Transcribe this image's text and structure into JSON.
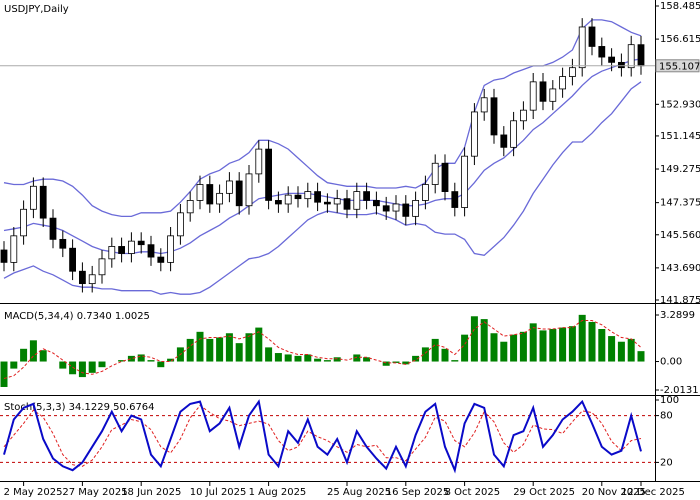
{
  "chart_data": [
    {
      "type": "candlestick",
      "title": "USDJPY,Daily",
      "categories": [
        null,
        null,
        "2 May 2025",
        null,
        null,
        null,
        null,
        null,
        "27 May 2025",
        null,
        null,
        null,
        null,
        null,
        "18 Jun 2025",
        null,
        null,
        null,
        null,
        null,
        null,
        "10 Jul 2025",
        null,
        null,
        null,
        null,
        null,
        "1 Aug 2025",
        null,
        null,
        null,
        null,
        null,
        null,
        null,
        "25 Aug 2025",
        null,
        null,
        null,
        null,
        null,
        "16 Sep 2025",
        null,
        null,
        null,
        null,
        null,
        "8 Oct 2025",
        null,
        null,
        null,
        null,
        null,
        null,
        "29 Oct 2025",
        null,
        null,
        null,
        null,
        null,
        null,
        "20 Nov 2025",
        null,
        null,
        null,
        "12 Dec 2025"
      ],
      "open": [
        144.7,
        144.0,
        145.5,
        147.0,
        148.3,
        146.5,
        145.3,
        144.8,
        143.5,
        142.8,
        143.3,
        144.2,
        144.9,
        144.5,
        145.2,
        145.0,
        144.3,
        144.0,
        145.5,
        146.8,
        147.5,
        148.4,
        147.3,
        147.9,
        148.6,
        147.2,
        149.0,
        150.4,
        147.5,
        147.3,
        147.8,
        147.6,
        148.0,
        147.4,
        147.3,
        147.6,
        147.0,
        148.0,
        147.5,
        147.2,
        146.9,
        147.3,
        146.6,
        147.5,
        148.4,
        149.6,
        148.0,
        147.1,
        150.0,
        152.5,
        153.3,
        151.2,
        150.5,
        152.0,
        152.6,
        154.2,
        153.1,
        153.8,
        154.5,
        155.0,
        157.3,
        156.2,
        155.6,
        155.3,
        155.0,
        156.3
      ],
      "high": [
        145.2,
        146.0,
        147.5,
        148.8,
        148.8,
        147.0,
        145.8,
        145.3,
        144.0,
        143.8,
        144.7,
        145.4,
        145.4,
        145.7,
        145.7,
        145.5,
        144.8,
        146.0,
        147.3,
        148.0,
        148.9,
        148.9,
        148.4,
        149.1,
        149.1,
        149.5,
        150.9,
        150.9,
        148.0,
        148.3,
        148.3,
        148.5,
        148.5,
        147.9,
        148.1,
        148.1,
        148.5,
        148.5,
        148.0,
        147.7,
        147.8,
        147.8,
        148.0,
        148.9,
        150.1,
        150.1,
        148.5,
        150.5,
        153.0,
        153.8,
        153.8,
        151.7,
        152.5,
        153.1,
        154.7,
        154.7,
        154.3,
        155.0,
        155.5,
        157.8,
        157.8,
        156.7,
        156.1,
        155.8,
        156.8,
        156.8
      ],
      "low": [
        143.5,
        143.5,
        145.0,
        146.5,
        146.0,
        144.8,
        144.3,
        143.0,
        142.3,
        142.3,
        142.8,
        143.7,
        144.0,
        144.0,
        144.5,
        143.8,
        143.5,
        143.5,
        145.0,
        146.3,
        147.0,
        146.8,
        146.8,
        147.4,
        146.7,
        146.7,
        148.5,
        147.0,
        146.8,
        146.8,
        147.1,
        147.1,
        146.9,
        146.8,
        146.8,
        146.5,
        146.5,
        147.0,
        146.7,
        146.4,
        146.4,
        146.1,
        146.1,
        147.0,
        147.9,
        147.5,
        146.6,
        146.6,
        149.5,
        152.0,
        150.7,
        150.0,
        150.0,
        151.5,
        152.1,
        152.6,
        152.6,
        153.3,
        154.0,
        154.5,
        155.7,
        155.1,
        154.8,
        154.5,
        154.5,
        154.6
      ],
      "close": [
        144.0,
        145.5,
        147.0,
        148.3,
        146.5,
        145.3,
        144.8,
        143.5,
        142.8,
        143.3,
        144.2,
        144.9,
        144.5,
        145.2,
        145.0,
        144.3,
        144.0,
        145.5,
        146.8,
        147.5,
        148.4,
        147.3,
        147.9,
        148.6,
        147.2,
        149.0,
        150.4,
        147.5,
        147.3,
        147.8,
        147.6,
        148.0,
        147.4,
        147.3,
        147.6,
        147.0,
        148.0,
        147.5,
        147.2,
        146.9,
        147.3,
        146.6,
        147.5,
        148.4,
        149.6,
        148.0,
        147.1,
        150.0,
        152.5,
        153.3,
        151.2,
        150.5,
        152.0,
        152.6,
        154.2,
        153.1,
        153.8,
        154.5,
        155.0,
        157.3,
        156.2,
        155.6,
        155.3,
        155.0,
        156.3,
        155.107
      ],
      "bands": {
        "color": "#6a6ad8",
        "upper": [
          148.5,
          148.4,
          148.4,
          148.6,
          148.7,
          148.7,
          148.6,
          148.3,
          147.8,
          147.2,
          146.9,
          146.7,
          146.6,
          146.6,
          146.8,
          146.8,
          146.8,
          146.9,
          147.4,
          148.0,
          148.7,
          149.0,
          149.2,
          149.6,
          149.8,
          150.2,
          150.9,
          150.9,
          150.7,
          150.4,
          149.9,
          149.4,
          148.9,
          148.5,
          148.4,
          148.3,
          148.3,
          148.3,
          148.2,
          148.2,
          148.2,
          148.3,
          148.2,
          148.5,
          149.3,
          149.6,
          149.6,
          150.5,
          152.5,
          154.0,
          154.3,
          154.4,
          154.7,
          154.9,
          155.1,
          155.1,
          155.3,
          155.6,
          156.0,
          157.2,
          157.7,
          157.7,
          157.6,
          157.3,
          157.0,
          156.8
        ],
        "middle": [
          145.8,
          145.9,
          146.0,
          146.2,
          146.1,
          146.0,
          145.8,
          145.5,
          145.2,
          144.9,
          144.7,
          144.6,
          144.5,
          144.5,
          144.6,
          144.6,
          144.5,
          144.6,
          144.8,
          145.1,
          145.5,
          145.8,
          146.1,
          146.5,
          146.8,
          147.2,
          147.6,
          147.7,
          147.8,
          147.9,
          147.9,
          147.9,
          147.8,
          147.7,
          147.6,
          147.5,
          147.5,
          147.5,
          147.5,
          147.4,
          147.3,
          147.2,
          147.2,
          147.3,
          147.5,
          147.6,
          147.6,
          147.9,
          148.5,
          149.2,
          149.6,
          149.9,
          150.4,
          150.9,
          151.5,
          151.9,
          152.4,
          152.9,
          153.4,
          154.0,
          154.5,
          154.8,
          155.0,
          155.2,
          155.4,
          155.5
        ],
        "lower": [
          143.1,
          143.4,
          143.6,
          143.8,
          143.5,
          143.3,
          143.0,
          142.7,
          142.6,
          142.6,
          142.5,
          142.5,
          142.4,
          142.4,
          142.4,
          142.4,
          142.2,
          142.3,
          142.2,
          142.2,
          142.3,
          142.6,
          143.0,
          143.4,
          143.8,
          144.2,
          144.3,
          144.5,
          144.9,
          145.4,
          145.9,
          146.4,
          146.7,
          146.9,
          146.8,
          146.7,
          146.7,
          146.7,
          146.8,
          146.6,
          146.4,
          146.1,
          146.2,
          146.1,
          145.7,
          145.6,
          145.6,
          145.3,
          144.5,
          144.4,
          144.9,
          145.4,
          146.1,
          146.9,
          147.9,
          148.7,
          149.5,
          150.2,
          150.8,
          150.8,
          151.3,
          151.9,
          152.4,
          153.1,
          153.8,
          154.2
        ]
      },
      "last_price": {
        "value": 155.107,
        "label": "155.107"
      },
      "ylim": [
        141.875,
        158.485
      ],
      "yticks": [
        158.485,
        156.615,
        {
          "value": 152.93,
          "label": "152.930"
        },
        151.145,
        149.275,
        147.375,
        {
          "value": 145.56,
          "label": "145.560"
        },
        {
          "value": 143.69,
          "label": "143.690"
        },
        141.875
      ]
    },
    {
      "type": "macd",
      "title": "MACD(5,34,4) 0.7340 1.0025",
      "values": [
        -1.8,
        -0.5,
        0.9,
        1.5,
        0.8,
        0.0,
        -0.5,
        -0.9,
        -1.1,
        -0.8,
        -0.4,
        0.0,
        0.1,
        0.4,
        0.5,
        0.1,
        -0.4,
        0.2,
        1.0,
        1.6,
        2.1,
        1.6,
        1.7,
        2.0,
        1.3,
        2.0,
        2.4,
        1.0,
        0.6,
        0.5,
        0.4,
        0.5,
        0.2,
        0.1,
        0.3,
        0.0,
        0.5,
        0.3,
        0.0,
        -0.3,
        -0.1,
        -0.2,
        0.4,
        1.0,
        1.6,
        0.9,
        0.1,
        1.9,
        3.2,
        3.0,
        2.0,
        1.4,
        1.9,
        2.1,
        2.7,
        2.2,
        2.3,
        2.4,
        2.5,
        3.3,
        2.8,
        2.3,
        1.8,
        1.4,
        1.6,
        0.734
      ],
      "signal": [
        -1.2,
        -1.0,
        -0.4,
        0.4,
        0.9,
        0.6,
        0.1,
        -0.4,
        -0.8,
        -0.9,
        -0.7,
        -0.3,
        0.0,
        0.2,
        0.4,
        0.3,
        0.0,
        0.0,
        0.5,
        1.1,
        1.6,
        1.7,
        1.7,
        1.8,
        1.6,
        1.8,
        2.1,
        1.6,
        1.0,
        0.7,
        0.5,
        0.5,
        0.3,
        0.2,
        0.2,
        0.1,
        0.3,
        0.3,
        0.1,
        -0.1,
        -0.1,
        -0.2,
        0.1,
        0.6,
        1.2,
        1.0,
        0.5,
        1.2,
        2.3,
        2.8,
        2.3,
        1.8,
        1.9,
        2.0,
        2.4,
        2.3,
        2.3,
        2.4,
        2.4,
        2.9,
        2.9,
        2.6,
        2.1,
        1.7,
        1.6,
        1.0025
      ],
      "color": "#008000",
      "signal_color": "#e02020",
      "ylim": [
        -2.0131,
        3.2899
      ],
      "yticks": [
        3.2899,
        {
          "value": 0,
          "label": "0.00"
        },
        -2.0131
      ]
    },
    {
      "type": "stochastic",
      "title": "Stoch(5,3,3) 34.1229 50.6764",
      "k": [
        30,
        75,
        90,
        95,
        50,
        25,
        15,
        10,
        20,
        40,
        60,
        85,
        60,
        80,
        75,
        30,
        15,
        50,
        85,
        95,
        98,
        60,
        70,
        90,
        40,
        80,
        98,
        30,
        15,
        60,
        45,
        75,
        40,
        30,
        50,
        20,
        60,
        40,
        25,
        12,
        40,
        15,
        55,
        85,
        95,
        40,
        10,
        70,
        95,
        90,
        30,
        15,
        55,
        60,
        90,
        40,
        55,
        75,
        85,
        98,
        70,
        40,
        30,
        35,
        80,
        34.1229
      ],
      "d": [
        40,
        55,
        70,
        87,
        78,
        57,
        30,
        17,
        15,
        23,
        40,
        62,
        68,
        75,
        72,
        62,
        40,
        32,
        50,
        77,
        93,
        84,
        76,
        73,
        67,
        70,
        73,
        69,
        48,
        35,
        40,
        60,
        53,
        48,
        40,
        33,
        43,
        40,
        42,
        26,
        26,
        22,
        37,
        52,
        78,
        73,
        48,
        40,
        58,
        85,
        72,
        45,
        33,
        43,
        68,
        63,
        62,
        57,
        72,
        86,
        84,
        70,
        47,
        35,
        48,
        50.6764
      ],
      "k_color": "#0a0ac8",
      "d_color": "#e02020",
      "levels": [
        80,
        20
      ],
      "ylim": [
        0,
        100
      ],
      "yticks": [
        100,
        80,
        20
      ]
    }
  ]
}
